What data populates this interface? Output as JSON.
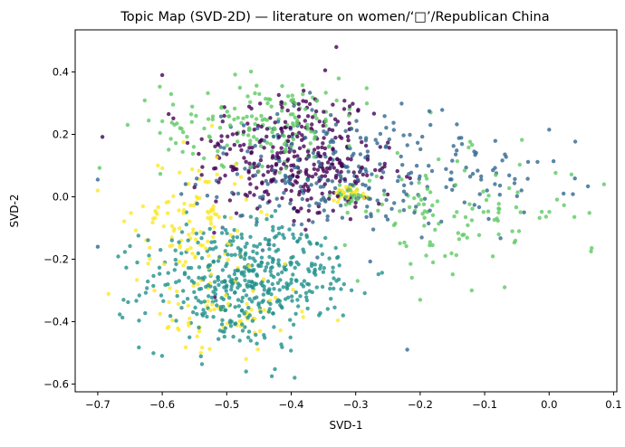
{
  "chart_data": {
    "type": "scatter",
    "title": "Topic Map (SVD-2D) — literature on women/‘□’/Republican China",
    "xlabel": "SVD-1",
    "ylabel": "SVD-2",
    "xlim": [
      -0.735,
      0.105
    ],
    "ylim": [
      -0.625,
      0.535
    ],
    "xticks": [
      -0.7,
      -0.6,
      -0.5,
      -0.4,
      -0.3,
      -0.2,
      -0.1,
      0.0,
      0.1
    ],
    "xtick_labels": [
      "−0.7",
      "−0.6",
      "−0.5",
      "−0.4",
      "−0.3",
      "−0.2",
      "−0.1",
      "0.0",
      "0.1"
    ],
    "yticks": [
      -0.6,
      -0.4,
      -0.2,
      0.0,
      0.2,
      0.4
    ],
    "ytick_labels": [
      "−0.6",
      "−0.4",
      "−0.2",
      "0.0",
      "0.2",
      "0.4"
    ],
    "grid": false,
    "legend": "none",
    "series": [
      {
        "color": "#440154",
        "clusters": [
          {
            "cx": -0.41,
            "cy": 0.14,
            "sx": 0.07,
            "sy": 0.11,
            "n": 230
          },
          {
            "cx": -0.34,
            "cy": 0.08,
            "sx": 0.05,
            "sy": 0.08,
            "n": 110
          }
        ],
        "points": [
          [
            -0.6,
            0.39
          ],
          [
            -0.33,
            0.48
          ],
          [
            -0.55,
            0.03
          ]
        ]
      },
      {
        "color": "#31688e",
        "clusters": [
          {
            "cx": -0.36,
            "cy": 0.08,
            "sx": 0.09,
            "sy": 0.1,
            "n": 190
          },
          {
            "cx": -0.2,
            "cy": 0.07,
            "sx": 0.08,
            "sy": 0.08,
            "n": 80
          },
          {
            "cx": -0.05,
            "cy": 0.06,
            "sx": 0.05,
            "sy": 0.05,
            "n": 22
          }
        ],
        "points": [
          [
            -0.7,
            0.055
          ],
          [
            -0.7,
            -0.16
          ],
          [
            0.0,
            0.215
          ],
          [
            -0.22,
            -0.49
          ]
        ]
      },
      {
        "color": "#21918c",
        "clusters": [
          {
            "cx": -0.49,
            "cy": -0.29,
            "sx": 0.07,
            "sy": 0.1,
            "n": 320
          },
          {
            "cx": -0.42,
            "cy": -0.23,
            "sx": 0.07,
            "sy": 0.08,
            "n": 150
          }
        ],
        "points": [
          [
            -0.47,
            -0.56
          ],
          [
            -0.43,
            -0.575
          ],
          [
            -0.66,
            -0.33
          ]
        ]
      },
      {
        "color": "#5ec962",
        "clusters": [
          {
            "cx": -0.44,
            "cy": 0.24,
            "sx": 0.08,
            "sy": 0.07,
            "n": 170
          },
          {
            "cx": -0.14,
            "cy": -0.05,
            "sx": 0.09,
            "sy": 0.09,
            "n": 110
          },
          {
            "cx": -0.31,
            "cy": 0.01,
            "sx": 0.012,
            "sy": 0.015,
            "n": 25
          }
        ],
        "points": [
          [
            0.085,
            0.04
          ],
          [
            0.065,
            -0.175
          ],
          [
            -0.12,
            -0.3
          ],
          [
            -0.2,
            -0.33
          ]
        ]
      },
      {
        "color": "#fde725",
        "clusters": [
          {
            "cx": -0.55,
            "cy": -0.09,
            "sx": 0.045,
            "sy": 0.12,
            "n": 120
          },
          {
            "cx": -0.5,
            "cy": -0.39,
            "sx": 0.06,
            "sy": 0.07,
            "n": 60
          },
          {
            "cx": -0.31,
            "cy": 0.015,
            "sx": 0.015,
            "sy": 0.012,
            "n": 25
          }
        ],
        "points": [
          [
            -0.7,
            0.02
          ],
          [
            -0.54,
            -0.5
          ],
          [
            -0.47,
            -0.52
          ]
        ]
      }
    ]
  }
}
